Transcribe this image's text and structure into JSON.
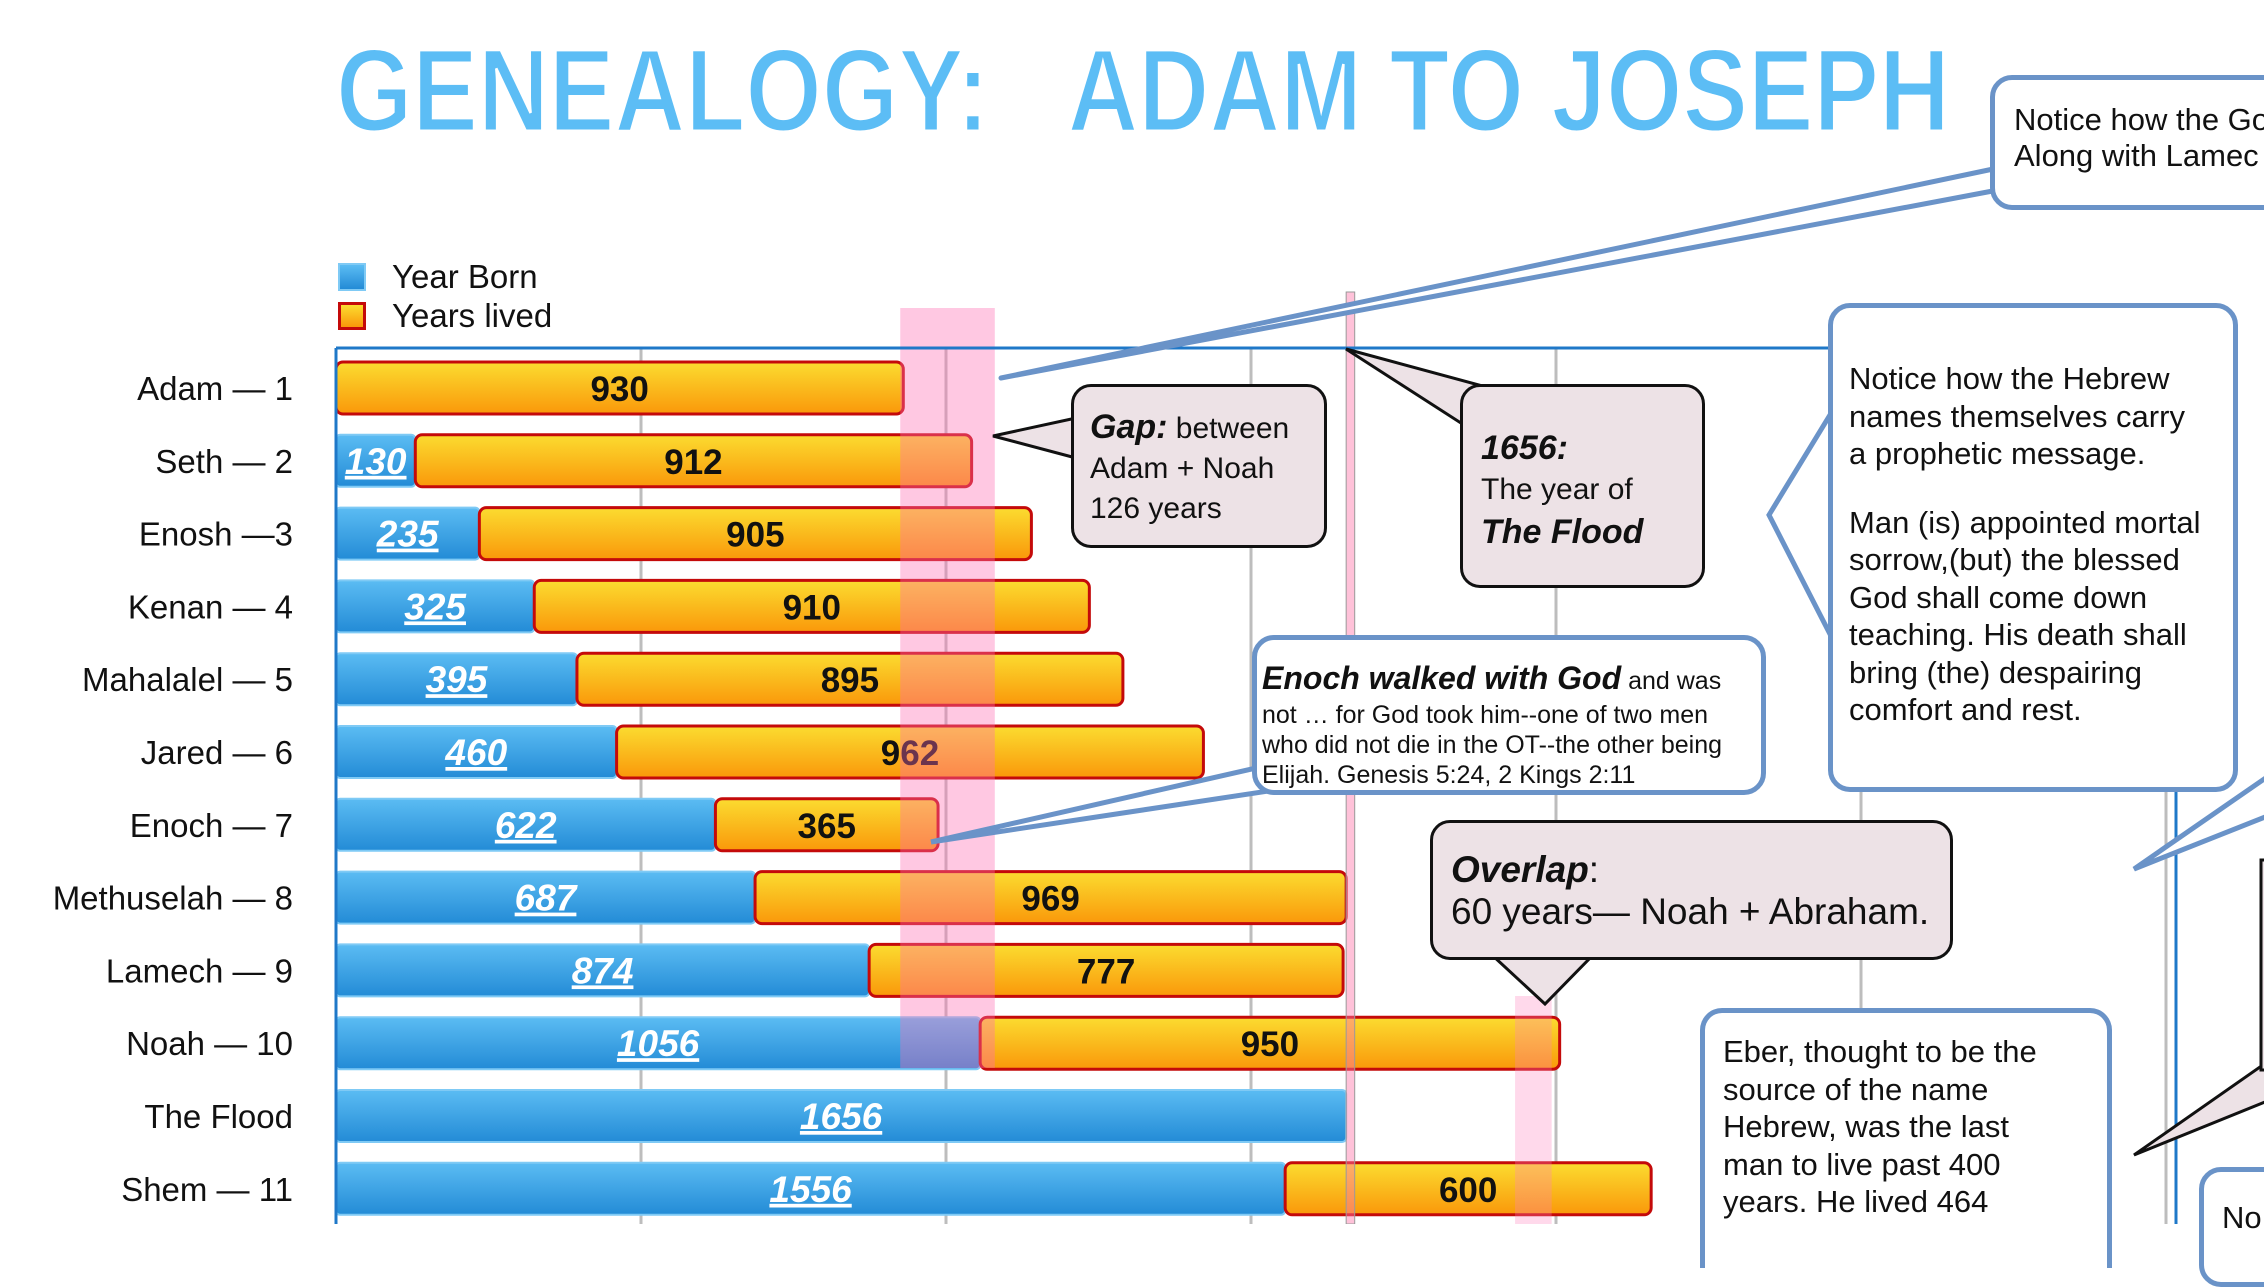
{
  "title": "GENEALOGY:   ADAM TO JOSEPH",
  "colors": {
    "title": "#5cbdf5",
    "blue_top": "#5bbcf3",
    "blue_bottom": "#238bd6",
    "orange_top": "#fbdc30",
    "orange_bottom": "#fa980a",
    "orange_border": "#c40a0a",
    "plot_border": "#1f78c8",
    "callout_blue": "#6a93c8",
    "callout_pink": "#ede2e6"
  },
  "legend": [
    {
      "label": "Year Born",
      "color": "blue"
    },
    {
      "label": "Years lived",
      "color": "orange"
    }
  ],
  "chart_data": {
    "type": "bar",
    "orientation": "horizontal-stacked",
    "title": "GENEALOGY:   ADAM TO JOSEPH",
    "xlim": [
      0,
      3000
    ],
    "grid_step": 500,
    "grid": true,
    "legend_position": "top-left",
    "categories": [
      "Adam — 1",
      "Seth — 2",
      "Enosh —3",
      "Kenan — 4",
      "Mahalalel — 5",
      "Jared — 6",
      "Enoch — 7",
      "Methuselah — 8",
      "Lamech — 9",
      "Noah — 10",
      "The Flood",
      "Shem — 11"
    ],
    "series": [
      {
        "name": "Year Born",
        "values": [
          0,
          130,
          235,
          325,
          395,
          460,
          622,
          687,
          874,
          1056,
          1656,
          1556
        ],
        "labels": [
          "",
          "130",
          "235",
          "325",
          "395",
          "460",
          "622",
          "687",
          "874",
          "1056",
          "1656",
          "1556"
        ]
      },
      {
        "name": "Years lived",
        "values": [
          930,
          912,
          905,
          910,
          895,
          962,
          365,
          969,
          777,
          950,
          0,
          600
        ],
        "labels": [
          "930",
          "912",
          "905",
          "910",
          "895",
          "962",
          "365",
          "969",
          "777",
          "950",
          "",
          "600"
        ]
      }
    ],
    "highlights": [
      {
        "from": 925,
        "to": 1080,
        "meaning": "gap"
      },
      {
        "from": 1656,
        "to": 1670,
        "meaning": "flood"
      },
      {
        "from": 1946,
        "to": 2006,
        "meaning": "overlap"
      }
    ]
  },
  "callouts": {
    "top_right": {
      "line1": "Notice how the Go",
      "line2": "Along with Lamec"
    },
    "gap": {
      "bold": "Gap:",
      "rest": " between",
      "line2": "Adam + Noah",
      "line3": "126 years"
    },
    "flood": {
      "line1": "1656:",
      "line2": "The year of",
      "line3": "The Flood"
    },
    "hebrew": {
      "lines": [
        "Notice how the Hebrew",
        "names themselves carry",
        "a prophetic message.",
        "",
        "Man (is) appointed mortal",
        "sorrow,(but) the blessed",
        "God shall come down",
        "teaching. His death shall",
        "bring (the) despairing",
        "comfort and rest."
      ]
    },
    "enoch": {
      "bold": "Enoch walked with God",
      "rest": " and was",
      "lines": [
        "not … for God took him--one of two men",
        "who did not die in the OT--the other being",
        " Elijah. Genesis 5:24, 2 Kings 2:11"
      ]
    },
    "overlap": {
      "bold": "Overlap",
      "colon": ":",
      "line2": "60 years— Noah + Abraham."
    },
    "eber": {
      "lines": [
        "Eber, thought to be the",
        "source of the name",
        "Hebrew, was the last",
        "man to live past 400",
        "years. He lived 464"
      ]
    },
    "bottom_right": {
      "text": "No"
    }
  }
}
